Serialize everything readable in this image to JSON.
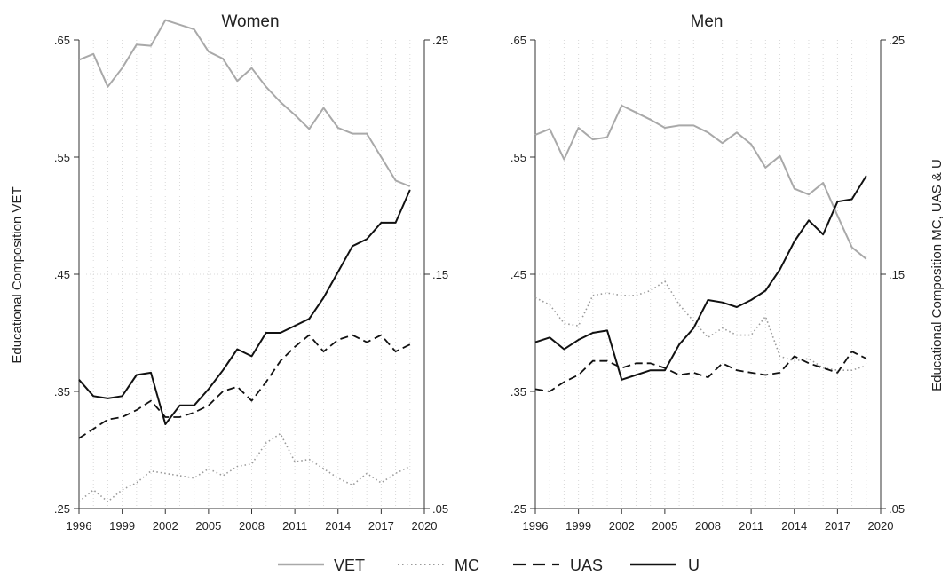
{
  "legend": {
    "items": [
      {
        "label": "VET",
        "style": "solid-gray"
      },
      {
        "label": "MC",
        "style": "dotted-gray"
      },
      {
        "label": "UAS",
        "style": "dashed-black"
      },
      {
        "label": "U",
        "style": "solid-black"
      }
    ]
  },
  "colors": {
    "vet": "#a9a9a9",
    "mc": "#9a9a9a",
    "uas": "#111111",
    "u": "#111111",
    "grid": "#d8d8d8",
    "axis": "#333333"
  },
  "chart_data": [
    {
      "type": "line",
      "title": "Women",
      "ylabel_left": "Educational Composition VET",
      "ylabel_right": "",
      "x": [
        1996,
        1997,
        1998,
        1999,
        2000,
        2001,
        2002,
        2003,
        2004,
        2005,
        2006,
        2007,
        2008,
        2009,
        2010,
        2011,
        2012,
        2013,
        2014,
        2015,
        2016,
        2017,
        2018,
        2019
      ],
      "xlim": [
        1996,
        2020
      ],
      "xticks": [
        "1996",
        "1999",
        "2002",
        "2005",
        "2008",
        "2011",
        "2014",
        "2017",
        "2020"
      ],
      "ylim_left": [
        0.25,
        0.65
      ],
      "yticks_left": [
        ".25",
        ".35",
        ".45",
        ".55",
        ".65"
      ],
      "ylim_right": [
        0.05,
        0.25
      ],
      "yticks_right": [
        ".05",
        ".15",
        ".25"
      ],
      "grid": "vertical-dotted",
      "series": [
        {
          "name": "VET",
          "axis": "left",
          "values": [
            0.633,
            0.638,
            0.61,
            0.626,
            0.646,
            0.645,
            0.667,
            0.663,
            0.659,
            0.64,
            0.634,
            0.615,
            0.626,
            0.61,
            0.597,
            0.586,
            0.574,
            0.592,
            0.575,
            0.57,
            0.57,
            0.55,
            0.53,
            0.525
          ]
        },
        {
          "name": "MC",
          "axis": "right",
          "values": [
            0.053,
            0.058,
            0.053,
            0.058,
            0.061,
            0.066,
            0.065,
            0.064,
            0.063,
            0.067,
            0.064,
            0.068,
            0.069,
            0.078,
            0.082,
            0.07,
            0.071,
            0.067,
            0.063,
            0.06,
            0.065,
            0.061,
            0.065,
            0.068
          ]
        },
        {
          "name": "UAS",
          "axis": "right",
          "values": [
            0.08,
            0.084,
            0.088,
            0.089,
            0.092,
            0.096,
            0.089,
            0.089,
            0.091,
            0.094,
            0.1,
            0.102,
            0.096,
            0.104,
            0.113,
            0.119,
            0.124,
            0.117,
            0.122,
            0.124,
            0.121,
            0.124,
            0.117,
            0.12
          ]
        },
        {
          "name": "U",
          "axis": "right",
          "values": [
            0.105,
            0.098,
            0.097,
            0.098,
            0.107,
            0.108,
            0.086,
            0.094,
            0.094,
            0.101,
            0.109,
            0.118,
            0.115,
            0.125,
            0.125,
            0.128,
            0.131,
            0.14,
            0.151,
            0.162,
            0.165,
            0.172,
            0.172,
            0.186
          ]
        }
      ]
    },
    {
      "type": "line",
      "title": "Men",
      "ylabel_left": "",
      "ylabel_right": "Educational Composition MC, UAS & U",
      "x": [
        1996,
        1997,
        1998,
        1999,
        2000,
        2001,
        2002,
        2003,
        2004,
        2005,
        2006,
        2007,
        2008,
        2009,
        2010,
        2011,
        2012,
        2013,
        2014,
        2015,
        2016,
        2017,
        2018,
        2019
      ],
      "xlim": [
        1996,
        2020
      ],
      "xticks": [
        "1996",
        "1999",
        "2002",
        "2005",
        "2008",
        "2011",
        "2014",
        "2017",
        "2020"
      ],
      "ylim_left": [
        0.25,
        0.65
      ],
      "yticks_left": [
        ".25",
        ".35",
        ".45",
        ".55",
        ".65"
      ],
      "ylim_right": [
        0.05,
        0.25
      ],
      "yticks_right": [
        ".05",
        ".15",
        ".25"
      ],
      "grid": "vertical-dotted",
      "series": [
        {
          "name": "VET",
          "axis": "left",
          "values": [
            0.569,
            0.574,
            0.548,
            0.575,
            0.565,
            0.567,
            0.594,
            0.588,
            0.582,
            0.575,
            0.577,
            0.577,
            0.571,
            0.562,
            0.571,
            0.561,
            0.541,
            0.551,
            0.523,
            0.518,
            0.528,
            0.5,
            0.473,
            0.463
          ]
        },
        {
          "name": "MC",
          "axis": "right",
          "values": [
            0.14,
            0.137,
            0.129,
            0.128,
            0.141,
            0.142,
            0.141,
            0.141,
            0.143,
            0.147,
            0.137,
            0.13,
            0.123,
            0.127,
            0.124,
            0.124,
            0.132,
            0.115,
            0.113,
            0.114,
            0.11,
            0.109,
            0.109,
            0.111
          ]
        },
        {
          "name": "UAS",
          "axis": "right",
          "values": [
            0.101,
            0.1,
            0.104,
            0.107,
            0.113,
            0.113,
            0.11,
            0.112,
            0.112,
            0.11,
            0.107,
            0.108,
            0.106,
            0.112,
            0.109,
            0.108,
            0.107,
            0.108,
            0.115,
            0.112,
            0.11,
            0.108,
            0.117,
            0.114
          ]
        },
        {
          "name": "U",
          "axis": "right",
          "values": [
            0.121,
            0.123,
            0.118,
            0.122,
            0.125,
            0.126,
            0.105,
            0.107,
            0.109,
            0.109,
            0.12,
            0.127,
            0.139,
            0.138,
            0.136,
            0.139,
            0.143,
            0.152,
            0.164,
            0.173,
            0.167,
            0.181,
            0.182,
            0.192
          ]
        }
      ]
    }
  ]
}
